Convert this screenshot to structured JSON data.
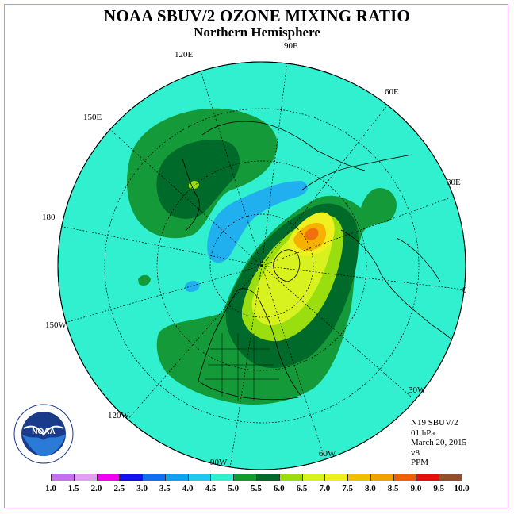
{
  "header": {
    "title": "NOAA SBUV/2 OZONE MIXING RATIO",
    "subtitle": "Northern Hemisphere"
  },
  "map": {
    "projection": "north-polar-stereographic",
    "longitude_labels": [
      "90E",
      "60E",
      "30E",
      "0",
      "30W",
      "60W",
      "90W",
      "120W",
      "150W",
      "180",
      "150E",
      "120E"
    ],
    "ocean_background_color": "#30f0d0",
    "regions": [
      {
        "name": "outer-high",
        "value_range": "5.0-5.5",
        "color": "#159a3a"
      },
      {
        "name": "inner-high",
        "value_range": "5.5-6.0",
        "color": "#006a2a"
      },
      {
        "name": "mid-high",
        "value_range": "6.0-6.5",
        "color": "#9ade10"
      },
      {
        "name": "core",
        "value_range": "6.5-7.0",
        "color": "#d8f220"
      },
      {
        "name": "peak-yellow",
        "value_range": "7.0-7.5",
        "color": "#f0f020"
      },
      {
        "name": "peak-orange",
        "value_range": "7.5-8.5",
        "color": "#f5a000"
      },
      {
        "name": "low",
        "value_range": "4.0-4.5",
        "color": "#20b0f0"
      }
    ]
  },
  "info": {
    "instrument": "N19 SBUV/2",
    "level": "01 hPa",
    "date": "March 20, 2015",
    "version": "v8",
    "units": "PPM"
  },
  "colorbar": {
    "colors": [
      "#c070f0",
      "#e0a0f0",
      "#f000f0",
      "#1010f0",
      "#1070f0",
      "#10a0f0",
      "#20c8f0",
      "#30f0d0",
      "#109a30",
      "#006a2a",
      "#9ade10",
      "#d8f220",
      "#f0f020",
      "#f0c000",
      "#f0a000",
      "#f06000",
      "#e01010",
      "#905030"
    ],
    "labels": [
      "1.0",
      "1.5",
      "2.0",
      "2.5",
      "3.0",
      "3.5",
      "4.0",
      "4.5",
      "5.0",
      "5.5",
      "6.0",
      "6.5",
      "7.0",
      "7.5",
      "8.0",
      "8.5",
      "9.0",
      "9.5",
      "10.0"
    ]
  },
  "logo": {
    "text": "NOAA",
    "ring_text": "NATIONAL OCEANIC AND ATMOSPHERIC ADMINISTRATION · U.S. DEPARTMENT OF COMMERCE"
  }
}
